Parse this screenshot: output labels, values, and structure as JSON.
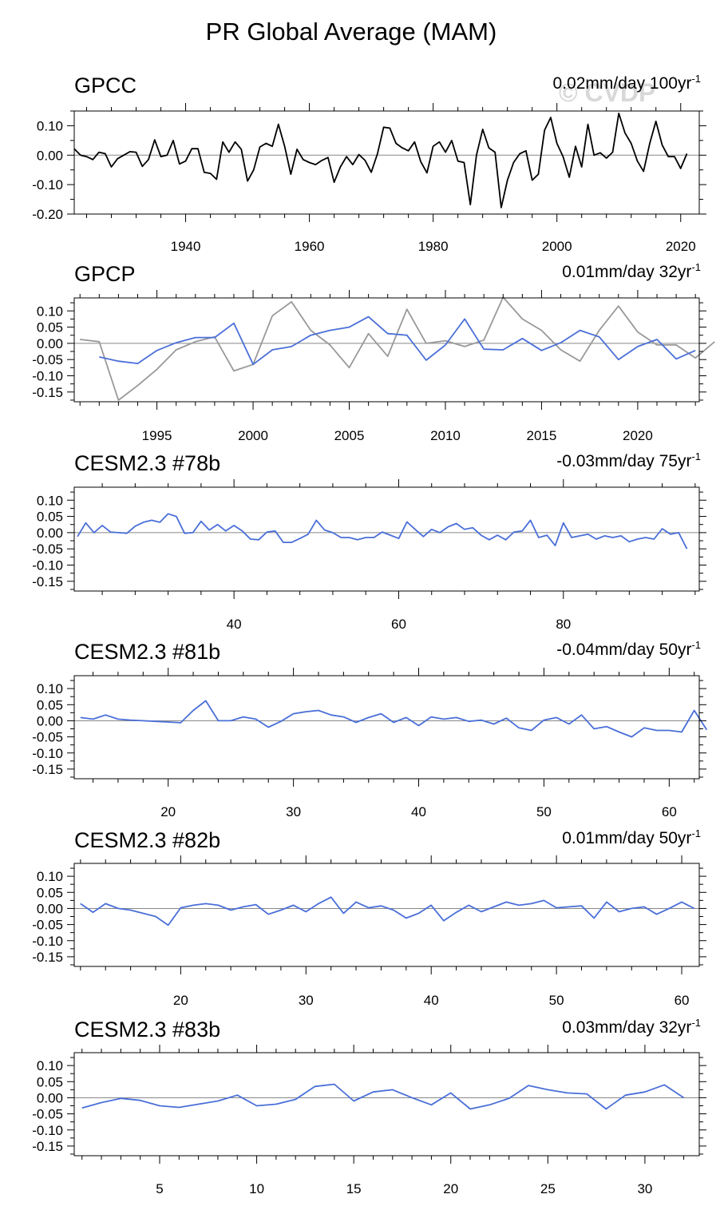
{
  "title": "PR Global Average (MAM)",
  "watermark": "© CVDP",
  "chart_data": [
    {
      "type": "line",
      "title": "GPCC",
      "trend_value": "0.02mm/day 100yr",
      "trend_exp": "-1",
      "xlim": [
        1922,
        2023
      ],
      "ylim": [
        -0.2,
        0.15
      ],
      "yticks": [
        -0.2,
        -0.1,
        0.0,
        0.1
      ],
      "ytick_labels": [
        "-0.20",
        "-0.10",
        "0.00",
        "0.10"
      ],
      "xticks": [
        1940,
        1960,
        1980,
        2000,
        2020
      ],
      "xtick_labels": [
        "1940",
        "1960",
        "1980",
        "2000",
        "2020"
      ],
      "series": [
        {
          "name": "GPCC",
          "color": "#000000",
          "x_start": 1922,
          "values": [
            0.022,
            0.0,
            -0.005,
            -0.015,
            0.01,
            0.005,
            -0.04,
            -0.012,
            0.0,
            0.012,
            0.01,
            -0.038,
            -0.015,
            0.052,
            -0.005,
            0.0,
            0.05,
            -0.03,
            -0.02,
            0.022,
            0.022,
            -0.058,
            -0.062,
            -0.082,
            0.045,
            0.01,
            0.045,
            0.02,
            -0.088,
            -0.05,
            0.028,
            0.04,
            0.03,
            0.105,
            0.03,
            -0.065,
            0.02,
            -0.015,
            -0.025,
            -0.032,
            -0.018,
            -0.008,
            -0.092,
            -0.04,
            -0.005,
            -0.032,
            0.002,
            -0.018,
            -0.058,
            0.005,
            0.095,
            0.092,
            0.04,
            0.025,
            0.015,
            0.045,
            -0.022,
            -0.06,
            0.03,
            0.045,
            0.01,
            0.05,
            -0.02,
            -0.025,
            -0.168,
            0.0,
            0.088,
            0.025,
            0.01,
            -0.178,
            -0.085,
            -0.025,
            0.005,
            0.015,
            -0.085,
            -0.065,
            0.085,
            0.128,
            0.04,
            -0.005,
            -0.075,
            0.03,
            -0.04,
            0.105,
            0.0,
            0.008,
            -0.01,
            0.01,
            0.142,
            0.075,
            0.04,
            -0.02,
            -0.055,
            0.04,
            0.115,
            0.035,
            -0.005,
            -0.005,
            -0.045,
            0.005
          ]
        }
      ]
    },
    {
      "type": "line",
      "title": "GPCP",
      "trend_value": "0.01mm/day 32yr",
      "trend_exp": "-1",
      "xlim": [
        1990.7,
        2023.2
      ],
      "ylim": [
        -0.18,
        0.14
      ],
      "yticks": [
        -0.15,
        -0.1,
        -0.05,
        0.0,
        0.05,
        0.1
      ],
      "ytick_labels": [
        "-0.15",
        "-0.10",
        "-0.05",
        "0.00",
        "0.05",
        "0.10"
      ],
      "xticks": [
        1995,
        2000,
        2005,
        2010,
        2015,
        2020
      ],
      "xtick_labels": [
        "1995",
        "2000",
        "2005",
        "2010",
        "2015",
        "2020"
      ],
      "series": [
        {
          "name": "GPCC (overlay)",
          "color": "#999999",
          "x_start": 1991,
          "values": [
            0.012,
            0.005,
            -0.175,
            -0.13,
            -0.08,
            -0.02,
            0.005,
            0.02,
            -0.085,
            -0.065,
            0.085,
            0.128,
            0.04,
            -0.005,
            -0.075,
            0.03,
            -0.04,
            0.105,
            0.0,
            0.008,
            -0.01,
            0.01,
            0.142,
            0.075,
            0.04,
            -0.02,
            -0.055,
            0.04,
            0.115,
            0.035,
            -0.005,
            -0.005,
            -0.045,
            0.005
          ]
        },
        {
          "name": "GPCP",
          "color": "#4a6fd8",
          "x_start": 1992,
          "values": [
            -0.042,
            -0.055,
            -0.062,
            -0.022,
            0.002,
            0.018,
            0.018,
            0.062,
            -0.065,
            -0.02,
            -0.01,
            0.025,
            0.04,
            0.05,
            0.082,
            0.03,
            0.025,
            -0.052,
            -0.005,
            0.075,
            -0.018,
            -0.02,
            0.015,
            -0.022,
            0.002,
            0.04,
            0.02,
            -0.05,
            -0.01,
            0.012,
            -0.048,
            -0.022
          ]
        }
      ]
    },
    {
      "type": "line",
      "title": "CESM2.3 #78b",
      "trend_value": "-0.03mm/day 75yr",
      "trend_exp": "-1",
      "xlim": [
        20.6,
        96.5
      ],
      "ylim": [
        -0.18,
        0.14
      ],
      "yticks": [
        -0.15,
        -0.1,
        -0.05,
        0.0,
        0.05,
        0.1
      ],
      "ytick_labels": [
        "-0.15",
        "-0.10",
        "-0.05",
        "0.00",
        "0.05",
        "0.10"
      ],
      "xticks": [
        40,
        60,
        80
      ],
      "xtick_labels": [
        "40",
        "60",
        "80"
      ],
      "series": [
        {
          "name": "CESM2.3 #78b",
          "color": "#4a6fd8",
          "x_start": 21,
          "values": [
            -0.012,
            0.03,
            0.0,
            0.022,
            0.002,
            0.0,
            -0.002,
            0.02,
            0.032,
            0.038,
            0.032,
            0.058,
            0.05,
            -0.002,
            0.0,
            0.035,
            0.008,
            0.025,
            0.005,
            0.022,
            0.005,
            -0.02,
            -0.022,
            0.002,
            0.005,
            -0.03,
            -0.03,
            -0.018,
            -0.005,
            0.038,
            0.008,
            0.0,
            -0.015,
            -0.015,
            -0.022,
            -0.015,
            -0.015,
            0.002,
            -0.008,
            -0.018,
            0.033,
            0.01,
            -0.012,
            0.01,
            0.0,
            0.018,
            0.028,
            0.01,
            0.015,
            -0.008,
            -0.022,
            -0.008,
            -0.022,
            0.002,
            0.005,
            0.038,
            -0.015,
            -0.008,
            -0.04,
            0.03,
            -0.015,
            -0.01,
            -0.005,
            -0.02,
            -0.01,
            -0.015,
            -0.01,
            -0.028,
            -0.02,
            -0.015,
            -0.02,
            0.012,
            -0.005,
            0.0,
            -0.05
          ]
        }
      ]
    },
    {
      "type": "line",
      "title": "CESM2.3 #81b",
      "trend_value": "-0.04mm/day 50yr",
      "trend_exp": "-1",
      "xlim": [
        12.5,
        62.4
      ],
      "ylim": [
        -0.18,
        0.14
      ],
      "yticks": [
        -0.15,
        -0.1,
        -0.05,
        0.0,
        0.05,
        0.1
      ],
      "ytick_labels": [
        "-0.15",
        "-0.10",
        "-0.05",
        "0.00",
        "0.05",
        "0.10"
      ],
      "xticks": [
        20,
        30,
        40,
        50,
        60
      ],
      "xtick_labels": [
        "20",
        "30",
        "40",
        "50",
        "60"
      ],
      "series": [
        {
          "name": "CESM2.3 #81b",
          "color": "#4a6fd8",
          "x_start": 13,
          "values": [
            0.01,
            0.005,
            0.018,
            0.005,
            0.002,
            0.0,
            -0.002,
            -0.004,
            -0.006,
            0.032,
            0.062,
            0.0,
            0.0,
            0.012,
            0.005,
            -0.02,
            -0.002,
            0.022,
            0.028,
            0.032,
            0.018,
            0.012,
            -0.005,
            0.01,
            0.022,
            -0.005,
            0.01,
            -0.015,
            0.012,
            0.005,
            0.01,
            -0.002,
            0.002,
            -0.01,
            0.008,
            -0.022,
            -0.03,
            0.002,
            0.01,
            -0.01,
            0.018,
            -0.025,
            -0.018,
            -0.035,
            -0.05,
            -0.022,
            -0.03,
            -0.03,
            -0.035,
            0.032,
            -0.028
          ]
        }
      ]
    },
    {
      "type": "line",
      "title": "CESM2.3 #82b",
      "trend_value": "0.01mm/day 50yr",
      "trend_exp": "-1",
      "xlim": [
        11.5,
        61.4
      ],
      "ylim": [
        -0.18,
        0.14
      ],
      "yticks": [
        -0.15,
        -0.1,
        -0.05,
        0.0,
        0.05,
        0.1
      ],
      "ytick_labels": [
        "-0.15",
        "-0.10",
        "-0.05",
        "0.00",
        "0.05",
        "0.10"
      ],
      "xticks": [
        20,
        30,
        40,
        50,
        60
      ],
      "xtick_labels": [
        "20",
        "30",
        "40",
        "50",
        "60"
      ],
      "series": [
        {
          "name": "CESM2.3 #82b",
          "color": "#4a6fd8",
          "x_start": 12,
          "values": [
            0.015,
            -0.012,
            0.015,
            0.0,
            -0.005,
            -0.015,
            -0.025,
            -0.052,
            0.002,
            0.01,
            0.015,
            0.01,
            -0.005,
            0.005,
            0.012,
            -0.018,
            -0.005,
            0.01,
            -0.01,
            0.015,
            0.035,
            -0.015,
            0.02,
            0.002,
            0.008,
            -0.005,
            -0.03,
            -0.015,
            0.01,
            -0.038,
            -0.012,
            0.01,
            -0.01,
            0.005,
            0.02,
            0.01,
            0.015,
            0.025,
            0.002,
            0.005,
            0.008,
            -0.03,
            0.02,
            -0.01,
            0.0,
            0.005,
            -0.018,
            0.0,
            0.02,
            0.0
          ]
        }
      ]
    },
    {
      "type": "line",
      "title": "CESM2.3 #83b",
      "trend_value": "0.03mm/day 32yr",
      "trend_exp": "-1",
      "xlim": [
        0.6,
        32.8
      ],
      "ylim": [
        -0.18,
        0.14
      ],
      "yticks": [
        -0.15,
        -0.1,
        -0.05,
        0.0,
        0.05,
        0.1
      ],
      "ytick_labels": [
        "-0.15",
        "-0.10",
        "-0.05",
        "0.00",
        "0.05",
        "0.10"
      ],
      "xticks": [
        5,
        10,
        15,
        20,
        25,
        30
      ],
      "xtick_labels": [
        "5",
        "10",
        "15",
        "20",
        "25",
        "30"
      ],
      "series": [
        {
          "name": "CESM2.3 #83b",
          "color": "#4a6fd8",
          "x_start": 1,
          "values": [
            -0.032,
            -0.015,
            -0.002,
            -0.008,
            -0.025,
            -0.03,
            -0.02,
            -0.01,
            0.008,
            -0.025,
            -0.02,
            -0.005,
            0.035,
            0.042,
            -0.01,
            0.018,
            0.025,
            0.0,
            -0.022,
            0.015,
            -0.035,
            -0.022,
            -0.002,
            0.038,
            0.025,
            0.015,
            0.012,
            -0.035,
            0.008,
            0.018,
            0.04,
            0.0
          ]
        }
      ]
    }
  ]
}
